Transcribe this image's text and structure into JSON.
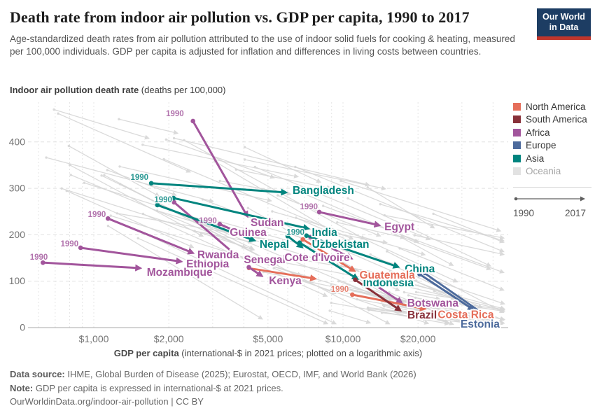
{
  "header": {
    "title": "Death rate from indoor air pollution vs. GDP per capita, 1990 to 2017",
    "subtitle": "Age-standardized death rates from air pollution attributed to the use of indoor solid fuels for cooking & heating, measured per 100,000 individuals. GDP per capita is adjusted for inflation and differences in living costs between countries.",
    "logo_line1": "Our World",
    "logo_line2": "in Data"
  },
  "chart_data": {
    "type": "connected-scatter",
    "title": "Death rate from indoor air pollution vs. GDP per capita, 1990 to 2017",
    "years": [
      1990,
      2017
    ],
    "x_axis": {
      "label_bold": "GDP per capita",
      "label_rest": " (international-$ in 2021 prices; plotted on a logarithmic axis)",
      "scale": "log",
      "tick_labels": [
        "$1,000",
        "$2,000",
        "$5,000",
        "$10,000",
        "$20,000"
      ],
      "tick_values": [
        1000,
        2000,
        5000,
        10000,
        20000
      ],
      "minor_gridlines": [
        600,
        700,
        800,
        900,
        1000,
        2000,
        3000,
        4000,
        5000,
        6000,
        7000,
        8000,
        9000,
        10000,
        20000,
        30000,
        40000
      ],
      "range": [
        550,
        45000
      ]
    },
    "y_axis": {
      "label_bold": "Indoor air pollution death rate",
      "label_rest": " (deaths per 100,000)",
      "ticks": [
        0,
        100,
        200,
        300,
        400
      ],
      "range": [
        0,
        487
      ],
      "grid": "dashed"
    },
    "colors": {
      "africa": "#a2559c",
      "asia": "#00847e",
      "europe": "#4c6a9c",
      "north_america": "#e56e5a",
      "south_america": "#883039",
      "oceania": "#dedede"
    },
    "series": [
      {
        "name": "Mozambique",
        "continent": "africa",
        "start": {
          "gdp": 625,
          "rate": 140
        },
        "end": {
          "gdp": 1550,
          "rate": 128
        },
        "year_tag": true,
        "tag_offset": [
          7,
          -4
        ],
        "label_offset": [
          8,
          6
        ]
      },
      {
        "name": "Ethiopia",
        "continent": "africa",
        "start": {
          "gdp": 885,
          "rate": 172
        },
        "end": {
          "gdp": 2260,
          "rate": 142
        },
        "year_tag": true,
        "tag_offset": [
          -3,
          -2
        ],
        "label_offset": [
          6,
          3
        ]
      },
      {
        "name": "Rwanda",
        "continent": "africa",
        "start": {
          "gdp": 1140,
          "rate": 235
        },
        "end": {
          "gdp": 2520,
          "rate": 160
        },
        "year_tag": true,
        "tag_offset": [
          -3,
          -2
        ],
        "label_offset": [
          5,
          2
        ]
      },
      {
        "name": "Senegal",
        "continent": "africa",
        "start": {
          "gdp": 2100,
          "rate": 270
        },
        "end": {
          "gdp": 3800,
          "rate": 152
        },
        "year_tag": false,
        "label_offset": [
          8,
          4
        ]
      },
      {
        "name": "Kenya",
        "continent": "africa",
        "start": {
          "gdp": 4190,
          "rate": 130
        },
        "end": {
          "gdp": 4760,
          "rate": 110
        },
        "year_tag": false,
        "label_offset": [
          9,
          6
        ]
      },
      {
        "name": "Sudan",
        "continent": "africa",
        "start": {
          "gdp": 2500,
          "rate": 445
        },
        "end": {
          "gdp": 4150,
          "rate": 238
        },
        "year_tag": true,
        "tag_offset": [
          -13,
          -7
        ],
        "label_offset": [
          4,
          8
        ]
      },
      {
        "name": "Guinea",
        "continent": "africa",
        "start": {
          "gdp": 3200,
          "rate": 223
        },
        "end": {
          "gdp": 3920,
          "rate": 202
        },
        "year_tag": true,
        "tag_offset": [
          -4,
          -1
        ],
        "label_offset": [
          -17,
          -2
        ]
      },
      {
        "name": "Cote d'Ivoire",
        "continent": "africa",
        "start": {
          "gdp": 7400,
          "rate": 195
        },
        "end": {
          "gdp": 10900,
          "rate": 148
        },
        "year_tag": false,
        "label_offset": [
          -97,
          -2
        ]
      },
      {
        "name": "Egypt",
        "continent": "africa",
        "start": {
          "gdp": 8030,
          "rate": 249
        },
        "end": {
          "gdp": 14100,
          "rate": 220
        },
        "year_tag": true,
        "tag_offset": [
          -2,
          -4
        ],
        "label_offset": [
          6,
          2
        ]
      },
      {
        "name": "Botswana",
        "continent": "africa",
        "start": {
          "gdp": 12300,
          "rate": 106
        },
        "end": {
          "gdp": 17300,
          "rate": 53
        },
        "year_tag": false,
        "label_offset": [
          7,
          0
        ]
      },
      {
        "name": "Bangladesh",
        "continent": "asia",
        "start": {
          "gdp": 1700,
          "rate": 311
        },
        "end": {
          "gdp": 5960,
          "rate": 291
        },
        "year_tag": true,
        "tag_offset": [
          -4,
          -5
        ],
        "label_offset": [
          8,
          -3
        ]
      },
      {
        "name": "Nepal",
        "continent": "asia",
        "start": {
          "gdp": 1800,
          "rate": 264
        },
        "end": {
          "gdp": 4450,
          "rate": 187
        },
        "year_tag": false,
        "label_offset": [
          6,
          5
        ]
      },
      {
        "name": "India",
        "continent": "asia",
        "start": {
          "gdp": 2090,
          "rate": 279
        },
        "end": {
          "gdp": 7310,
          "rate": 213
        },
        "year_tag": true,
        "tag_offset": [
          -2,
          6
        ],
        "label_offset": [
          4,
          5
        ]
      },
      {
        "name": "Uzbekistan",
        "continent": "asia",
        "start": {
          "gdp": 6000,
          "rate": 197
        },
        "end": {
          "gdp": 6900,
          "rate": 172
        },
        "year_tag": false,
        "label_offset": [
          13,
          -5
        ]
      },
      {
        "name": "China",
        "continent": "asia",
        "start": {
          "gdp": 7140,
          "rate": 198
        },
        "end": {
          "gdp": 16800,
          "rate": 130
        },
        "year_tag": true,
        "tag_offset": [
          -3,
          -1
        ],
        "label_offset": [
          8,
          2
        ]
      },
      {
        "name": "Indonesia",
        "continent": "asia",
        "start": {
          "gdp": 6700,
          "rate": 183
        },
        "end": {
          "gdp": 11500,
          "rate": 104
        },
        "year_tag": false,
        "label_offset": [
          7,
          5
        ]
      },
      {
        "name": "Guatemala",
        "continent": "north_america",
        "start": {
          "gdp": 6900,
          "rate": 190
        },
        "end": {
          "gdp": 11200,
          "rate": 121
        },
        "year_tag": false,
        "label_offset": [
          6,
          5
        ]
      },
      {
        "name": "Costa Rica",
        "continent": "north_america",
        "start": {
          "gdp": 10900,
          "rate": 71
        },
        "end": {
          "gdp": 21500,
          "rate": 40
        },
        "year_tag": true,
        "tag_offset": [
          -5,
          -4
        ],
        "label_offset": [
          17,
          8
        ]
      },
      {
        "name": "Brazil",
        "continent": "south_america",
        "start": {
          "gdp": 11200,
          "rate": 103
        },
        "end": {
          "gdp": 17100,
          "rate": 36
        },
        "year_tag": false,
        "label_offset": [
          9,
          6
        ]
      },
      {
        "name": "Estonia",
        "continent": "europe",
        "start": {
          "gdp": 20300,
          "rate": 115
        },
        "end": {
          "gdp": 33500,
          "rate": 38
        },
        "year_tag": false,
        "label_offset": [
          -19,
          20
        ]
      }
    ],
    "extra_trajectories": [
      {
        "continent": "north_america",
        "start": {
          "gdp": 4190,
          "rate": 128
        },
        "end": {
          "gdp": 7800,
          "rate": 105
        }
      },
      {
        "continent": "europe",
        "start": {
          "gdp": 21300,
          "rate": 117
        },
        "end": {
          "gdp": 38500,
          "rate": 21
        }
      }
    ]
  },
  "legend": {
    "items": [
      {
        "label": "North America",
        "color": "#e56e5a",
        "muted": false
      },
      {
        "label": "South America",
        "color": "#883039",
        "muted": false
      },
      {
        "label": "Africa",
        "color": "#a2559c",
        "muted": false
      },
      {
        "label": "Europe",
        "color": "#4c6a9c",
        "muted": false
      },
      {
        "label": "Asia",
        "color": "#00847e",
        "muted": false
      },
      {
        "label": "Oceania",
        "color": "#e2e2e2",
        "muted": true
      }
    ],
    "time": {
      "start_label": "1990",
      "end_label": "2017"
    }
  },
  "footer": {
    "source_label": "Data source:",
    "source_text": " IHME, Global Burden of Disease (2025); Eurostat, OECD, IMF, and World Bank (2026)",
    "note_label": "Note:",
    "note_text": " GDP per capita is expressed in international-$ at 2021 prices.",
    "link": "OurWorldinData.org/indoor-air-pollution | CC BY"
  }
}
